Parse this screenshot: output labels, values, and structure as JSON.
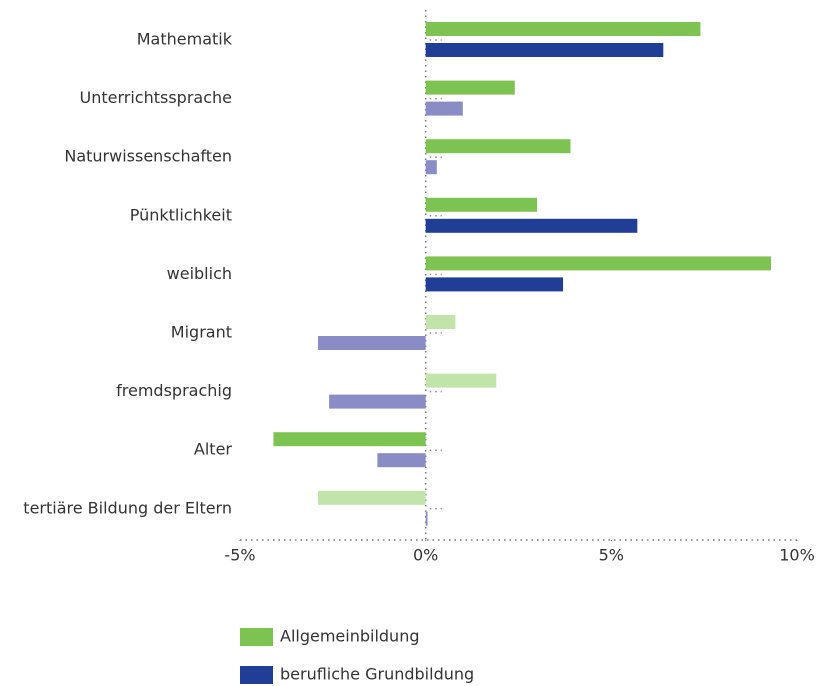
{
  "chart_data": {
    "type": "bar",
    "orientation": "horizontal",
    "categories": [
      "Mathematik",
      "Unterrichtssprache",
      "Naturwissenschaften",
      "Pünktlichkeit",
      "weiblich",
      "Migrant",
      "fremdsprachig",
      "Alter",
      "tertiäre Bildung der Eltern"
    ],
    "series": [
      {
        "name": "Allgemeinbildung",
        "color": "#7dc352",
        "values": [
          7.4,
          2.4,
          3.9,
          3.0,
          9.3,
          0.8,
          1.9,
          -4.1,
          -2.9
        ],
        "colors": [
          "#7dc352",
          "#7dc352",
          "#7dc352",
          "#7dc352",
          "#7dc352",
          "#c2e3a9",
          "#c2e3a9",
          "#7dc352",
          "#c2e3a9"
        ]
      },
      {
        "name": "berufliche Grundbildung",
        "color": "#213e97",
        "values": [
          6.4,
          1.0,
          0.3,
          5.7,
          3.7,
          -2.9,
          -2.6,
          -1.3,
          0.05
        ],
        "colors": [
          "#213e97",
          "#8a8cc6",
          "#8a8cc6",
          "#213e97",
          "#213e97",
          "#8a8cc6",
          "#8a8cc6",
          "#8a8cc6",
          "#8a8cc6"
        ]
      }
    ],
    "xlim": [
      -5,
      10
    ],
    "xticks": [
      {
        "value": -5,
        "label": "-5%"
      },
      {
        "value": 0,
        "label": "0%"
      },
      {
        "value": 5,
        "label": "5%"
      },
      {
        "value": 10,
        "label": "10%"
      }
    ]
  }
}
